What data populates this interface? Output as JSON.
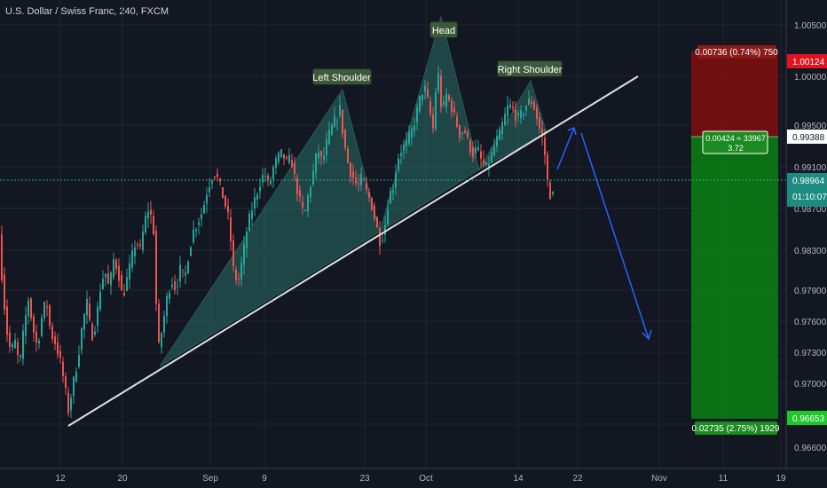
{
  "header": {
    "title": "U.S. Dollar / Swiss Franc, 240, FXCM"
  },
  "patterns": {
    "left_shoulder": "Left Shoulder",
    "head": "Head",
    "right_shoulder": "Right Shoulder"
  },
  "position": {
    "stop_label": "0.00736 (0.74%) 750",
    "entry_label_1": "0.00424 ≈ 33967",
    "entry_label_2": "3.72",
    "target_label": "0.02735 (2.75%) 1929",
    "stop_price": "1.00124",
    "entry_price": "0.99388",
    "target_price": "0.96653"
  },
  "current": {
    "price": "0.98964",
    "countdown": "01:10:07"
  },
  "colors": {
    "background": "#131722",
    "up_candle": "#26a69a",
    "down_candle": "#ef5350",
    "trendline": "#e0e0e0",
    "pattern_fill": "#2a6e66",
    "arrow": "#2962ff",
    "stop_zone": "#7a0e0e",
    "target_zone": "#0b7b14",
    "price_tag_red": "#e1131f",
    "price_tag_green": "#1fc72b",
    "current_price_tag": "#1e8b80"
  },
  "chart_data": {
    "type": "candlestick",
    "symbol": "U.S. Dollar / Swiss Franc",
    "interval": "240",
    "source": "FXCM",
    "x_ticks": [
      "12",
      "20",
      "Sep",
      "9",
      "23",
      "Oct",
      "14",
      "22",
      "Nov",
      "11",
      "19"
    ],
    "y_ticks": [
      "1.00500",
      "1.00000",
      "0.99500",
      "0.99100",
      "0.98700",
      "0.98300",
      "0.97900",
      "0.97600",
      "0.97300",
      "0.97000",
      "0.96600"
    ],
    "ylim": [
      0.9615,
      1.0098
    ],
    "price_path": [
      [
        0,
        0.987
      ],
      [
        4,
        0.9815
      ],
      [
        9,
        0.976
      ],
      [
        14,
        0.9735
      ],
      [
        19,
        0.9745
      ],
      [
        24,
        0.972
      ],
      [
        29,
        0.976
      ],
      [
        34,
        0.979
      ],
      [
        39,
        0.976
      ],
      [
        44,
        0.974
      ],
      [
        49,
        0.977
      ],
      [
        54,
        0.979
      ],
      [
        59,
        0.9755
      ],
      [
        64,
        0.9745
      ],
      [
        69,
        0.973
      ],
      [
        74,
        0.9705
      ],
      [
        79,
        0.9675
      ],
      [
        84,
        0.97
      ],
      [
        90,
        0.973
      ],
      [
        95,
        0.9765
      ],
      [
        100,
        0.9785
      ],
      [
        105,
        0.975
      ],
      [
        110,
        0.9765
      ],
      [
        115,
        0.98
      ],
      [
        120,
        0.982
      ],
      [
        125,
        0.98
      ],
      [
        130,
        0.983
      ],
      [
        135,
        0.982
      ],
      [
        140,
        0.979
      ],
      [
        145,
        0.981
      ],
      [
        150,
        0.983
      ],
      [
        155,
        0.985
      ],
      [
        160,
        0.984
      ],
      [
        165,
        0.987
      ],
      [
        170,
        0.9885
      ],
      [
        175,
        0.986
      ],
      [
        180,
        0.9735
      ],
      [
        185,
        0.976
      ],
      [
        190,
        0.979
      ],
      [
        195,
        0.981
      ],
      [
        200,
        0.98
      ],
      [
        205,
        0.982
      ],
      [
        210,
        0.981
      ],
      [
        215,
        0.984
      ],
      [
        220,
        0.986
      ],
      [
        225,
        0.987
      ],
      [
        230,
        0.988
      ],
      [
        235,
        0.99
      ],
      [
        240,
        0.9915
      ],
      [
        245,
        0.992
      ],
      [
        250,
        0.9905
      ],
      [
        255,
        0.989
      ],
      [
        260,
        0.987
      ],
      [
        265,
        0.982
      ],
      [
        270,
        0.9805
      ],
      [
        275,
        0.983
      ],
      [
        280,
        0.986
      ],
      [
        285,
        0.988
      ],
      [
        290,
        0.9895
      ],
      [
        295,
        0.991
      ],
      [
        300,
        0.992
      ],
      [
        305,
        0.9905
      ],
      [
        310,
        0.9925
      ],
      [
        315,
        0.9935
      ],
      [
        320,
        0.994
      ],
      [
        325,
        0.993
      ],
      [
        330,
        0.9935
      ],
      [
        335,
        0.991
      ],
      [
        340,
        0.989
      ],
      [
        345,
        0.9875
      ],
      [
        350,
        0.99
      ],
      [
        355,
        0.992
      ],
      [
        360,
        0.9945
      ],
      [
        365,
        0.993
      ],
      [
        370,
        0.995
      ],
      [
        375,
        0.9965
      ],
      [
        380,
        0.9975
      ],
      [
        385,
        0.9985
      ],
      [
        390,
        0.995
      ],
      [
        395,
        0.9925
      ],
      [
        400,
        0.9915
      ],
      [
        405,
        0.9905
      ],
      [
        410,
        0.9915
      ],
      [
        415,
        0.99
      ],
      [
        420,
        0.989
      ],
      [
        425,
        0.987
      ],
      [
        430,
        0.985
      ],
      [
        435,
        0.986
      ],
      [
        440,
        0.9895
      ],
      [
        445,
        0.9905
      ],
      [
        450,
        0.9935
      ],
      [
        455,
        0.9945
      ],
      [
        460,
        0.995
      ],
      [
        465,
        0.996
      ],
      [
        470,
        0.9975
      ],
      [
        475,
        0.9995
      ],
      [
        480,
        1.001
      ],
      [
        485,
        0.999
      ],
      [
        490,
        0.9965
      ],
      [
        495,
        1.003
      ],
      [
        500,
        0.998
      ],
      [
        505,
        1.0
      ],
      [
        510,
        0.999
      ],
      [
        515,
        0.9975
      ],
      [
        520,
        0.996
      ],
      [
        525,
        0.9965
      ],
      [
        530,
        0.995
      ],
      [
        535,
        0.994
      ],
      [
        540,
        0.9945
      ],
      [
        545,
        0.993
      ],
      [
        550,
        0.9925
      ],
      [
        555,
        0.9935
      ],
      [
        560,
        0.995
      ],
      [
        565,
        0.996
      ],
      [
        570,
        0.9975
      ],
      [
        575,
        0.999
      ],
      [
        580,
        0.9985
      ],
      [
        585,
        0.9975
      ],
      [
        590,
        0.998
      ],
      [
        595,
        0.999
      ],
      [
        600,
        0.9995
      ],
      [
        605,
        0.9985
      ],
      [
        610,
        0.9965
      ],
      [
        615,
        0.995
      ],
      [
        618,
        0.9915
      ],
      [
        621,
        0.99
      ],
      [
        623,
        0.9896
      ]
    ]
  }
}
